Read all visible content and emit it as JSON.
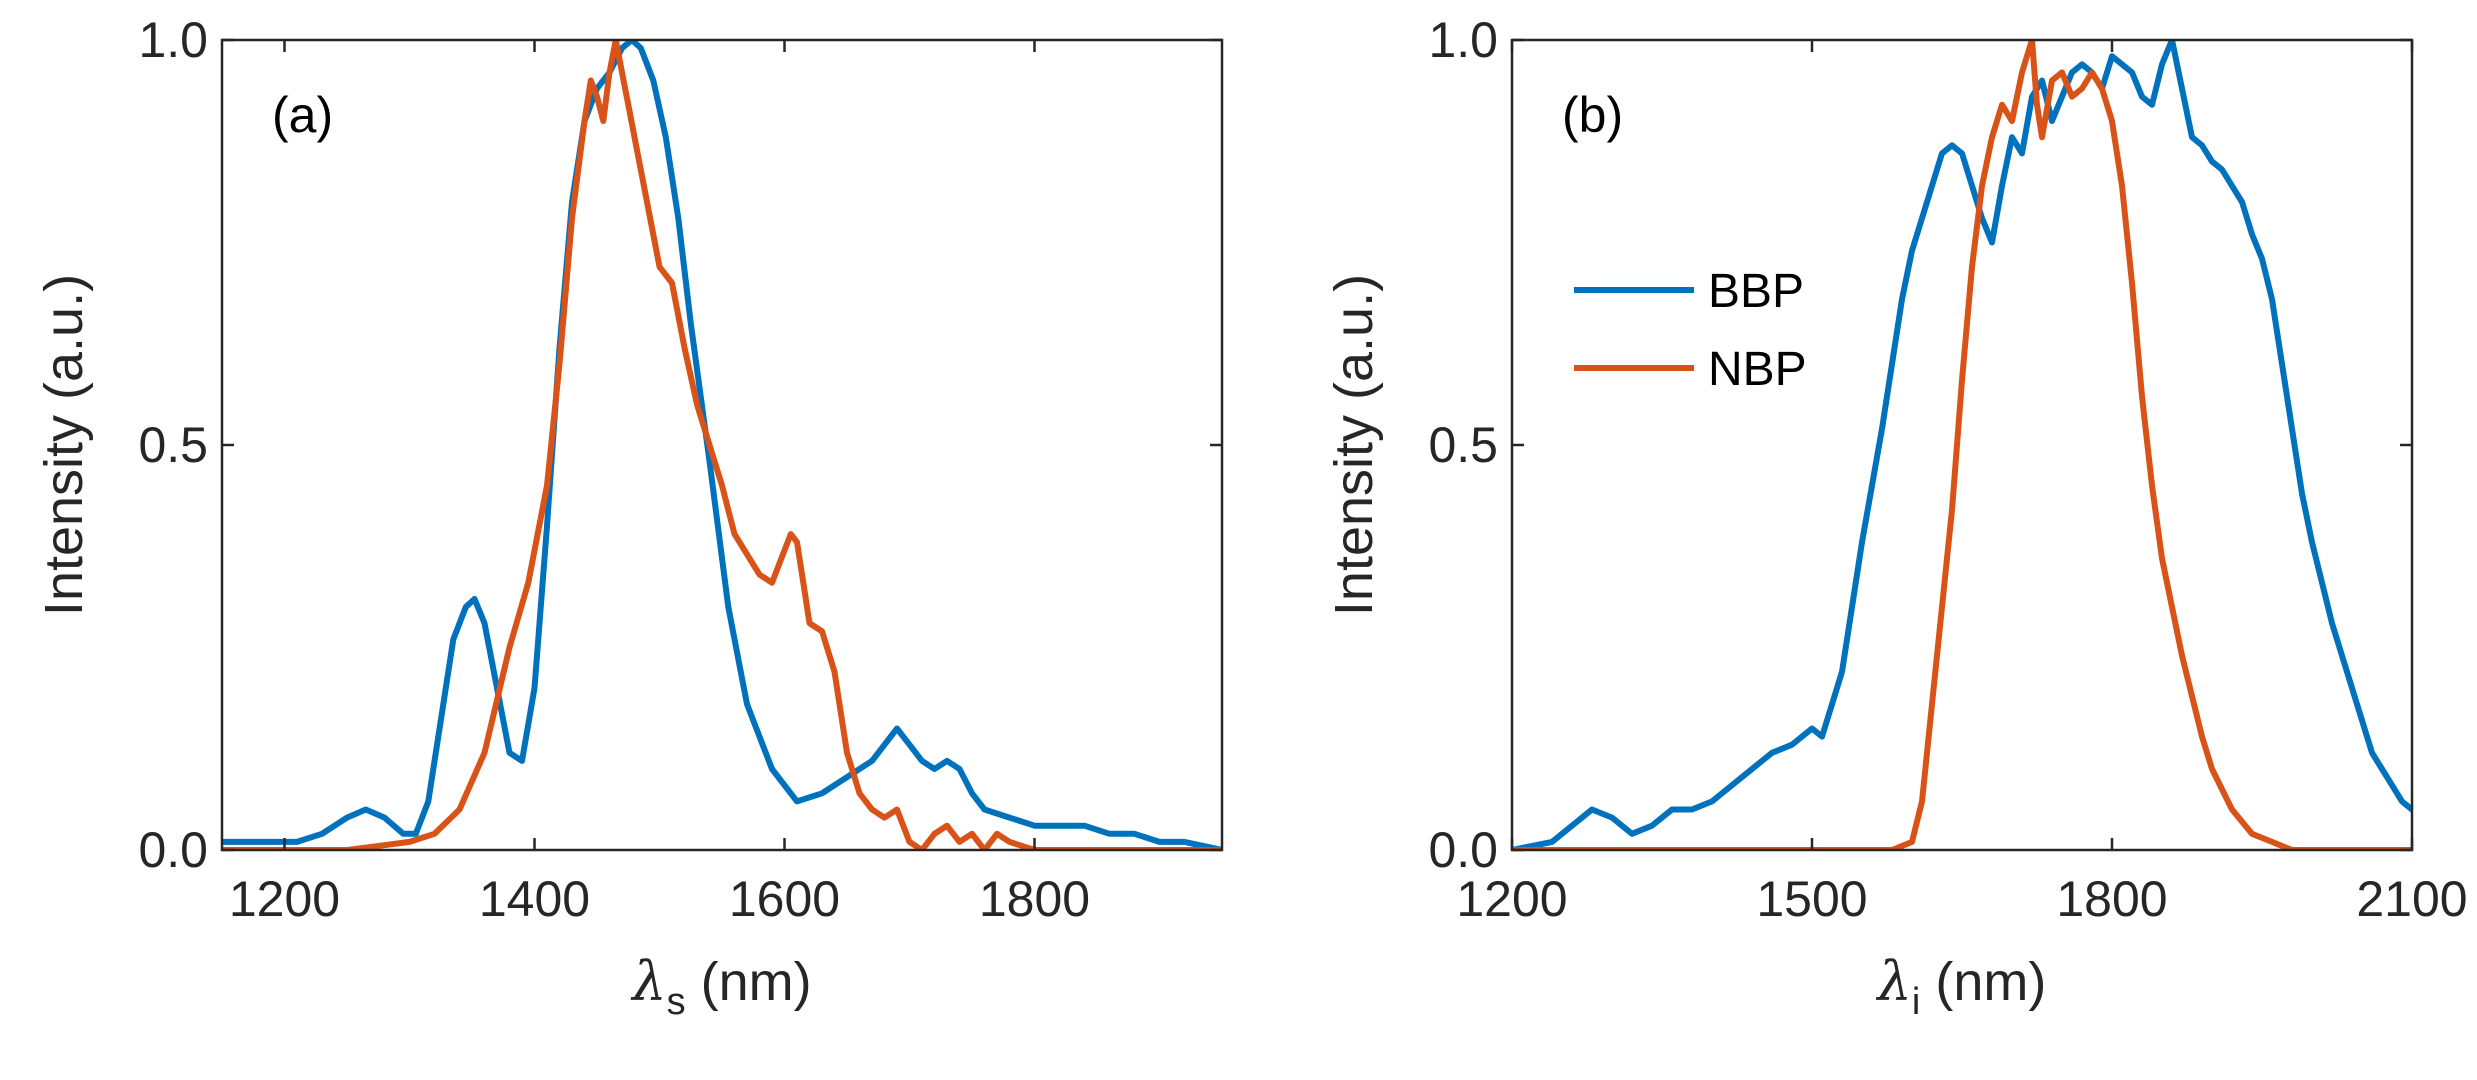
{
  "chart_data": [
    {
      "type": "line",
      "panel_label": "(a)",
      "xlabel_symbol": "λ",
      "xlabel_sub": "s",
      "xlabel_unit": " (nm)",
      "ylabel": "Intensity (a.u.)",
      "xlim": [
        1150,
        1950
      ],
      "ylim": [
        0,
        1
      ],
      "xticks": [
        1200,
        1400,
        1600,
        1800
      ],
      "yticks": [
        0,
        0.5,
        1
      ],
      "ytick_labels": [
        "0.0",
        "0.5",
        "1.0"
      ],
      "series": [
        {
          "name": "BBP",
          "color": "#0072BD",
          "x": [
            1150,
            1190,
            1210,
            1230,
            1250,
            1265,
            1280,
            1295,
            1305,
            1315,
            1325,
            1335,
            1345,
            1352,
            1360,
            1370,
            1380,
            1390,
            1400,
            1410,
            1420,
            1430,
            1440,
            1450,
            1460,
            1470,
            1478,
            1485,
            1495,
            1505,
            1515,
            1525,
            1540,
            1555,
            1570,
            1590,
            1610,
            1630,
            1650,
            1670,
            1680,
            1690,
            1700,
            1710,
            1720,
            1730,
            1740,
            1750,
            1760,
            1780,
            1800,
            1820,
            1840,
            1860,
            1880,
            1900,
            1920,
            1950
          ],
          "y": [
            0.01,
            0.01,
            0.01,
            0.02,
            0.04,
            0.05,
            0.04,
            0.02,
            0.02,
            0.06,
            0.16,
            0.26,
            0.3,
            0.31,
            0.28,
            0.2,
            0.12,
            0.11,
            0.2,
            0.4,
            0.62,
            0.8,
            0.9,
            0.94,
            0.96,
            0.99,
            1.0,
            0.99,
            0.95,
            0.88,
            0.78,
            0.65,
            0.48,
            0.3,
            0.18,
            0.1,
            0.06,
            0.07,
            0.09,
            0.11,
            0.13,
            0.15,
            0.13,
            0.11,
            0.1,
            0.11,
            0.1,
            0.07,
            0.05,
            0.04,
            0.03,
            0.03,
            0.03,
            0.02,
            0.02,
            0.01,
            0.01,
            0.0
          ]
        },
        {
          "name": "NBP",
          "color": "#D95319",
          "x": [
            1150,
            1250,
            1300,
            1320,
            1340,
            1360,
            1380,
            1395,
            1410,
            1420,
            1430,
            1440,
            1445,
            1450,
            1455,
            1460,
            1465,
            1470,
            1475,
            1480,
            1490,
            1500,
            1510,
            1520,
            1530,
            1540,
            1550,
            1560,
            1580,
            1590,
            1600,
            1605,
            1610,
            1615,
            1620,
            1630,
            1640,
            1650,
            1660,
            1670,
            1680,
            1690,
            1700,
            1710,
            1720,
            1730,
            1740,
            1750,
            1760,
            1770,
            1780,
            1800,
            1850,
            1950
          ],
          "y": [
            0.0,
            0.0,
            0.01,
            0.02,
            0.05,
            0.12,
            0.25,
            0.33,
            0.45,
            0.6,
            0.78,
            0.9,
            0.95,
            0.93,
            0.9,
            0.96,
            1.0,
            0.96,
            0.92,
            0.88,
            0.8,
            0.72,
            0.7,
            0.62,
            0.55,
            0.5,
            0.45,
            0.39,
            0.34,
            0.33,
            0.37,
            0.39,
            0.38,
            0.33,
            0.28,
            0.27,
            0.22,
            0.12,
            0.07,
            0.05,
            0.04,
            0.05,
            0.01,
            0.0,
            0.02,
            0.03,
            0.01,
            0.02,
            0.0,
            0.02,
            0.01,
            0.0,
            0.0,
            0.0
          ]
        }
      ]
    },
    {
      "type": "line",
      "panel_label": "(b)",
      "xlabel_symbol": "λ",
      "xlabel_sub": "i",
      "xlabel_unit": " (nm)",
      "ylabel": "Intensity (a.u.)",
      "xlim": [
        1200,
        2100
      ],
      "ylim": [
        0,
        1
      ],
      "xticks": [
        1200,
        1500,
        1800,
        2100
      ],
      "yticks": [
        0,
        0.5,
        1
      ],
      "ytick_labels": [
        "0.0",
        "0.5",
        "1.0"
      ],
      "legend": {
        "position": "upper-left",
        "entries": [
          "BBP",
          "NBP"
        ]
      },
      "series": [
        {
          "name": "BBP",
          "color": "#0072BD",
          "x": [
            1200,
            1240,
            1260,
            1280,
            1300,
            1320,
            1340,
            1360,
            1380,
            1400,
            1420,
            1440,
            1460,
            1480,
            1500,
            1510,
            1520,
            1530,
            1540,
            1550,
            1560,
            1570,
            1580,
            1590,
            1600,
            1610,
            1620,
            1630,
            1640,
            1650,
            1660,
            1670,
            1680,
            1690,
            1700,
            1710,
            1720,
            1730,
            1740,
            1750,
            1760,
            1770,
            1780,
            1790,
            1800,
            1810,
            1820,
            1830,
            1840,
            1850,
            1860,
            1870,
            1880,
            1890,
            1900,
            1910,
            1920,
            1930,
            1940,
            1950,
            1960,
            1970,
            1980,
            1990,
            2000,
            2010,
            2020,
            2030,
            2040,
            2050,
            2060,
            2070,
            2080,
            2090,
            2100
          ],
          "y": [
            0.0,
            0.01,
            0.03,
            0.05,
            0.04,
            0.02,
            0.03,
            0.05,
            0.05,
            0.06,
            0.08,
            0.1,
            0.12,
            0.13,
            0.15,
            0.14,
            0.18,
            0.22,
            0.3,
            0.38,
            0.45,
            0.52,
            0.6,
            0.68,
            0.74,
            0.78,
            0.82,
            0.86,
            0.87,
            0.86,
            0.82,
            0.78,
            0.75,
            0.82,
            0.88,
            0.86,
            0.93,
            0.95,
            0.9,
            0.93,
            0.96,
            0.97,
            0.96,
            0.94,
            0.98,
            0.97,
            0.96,
            0.93,
            0.92,
            0.97,
            1.0,
            0.94,
            0.88,
            0.87,
            0.85,
            0.84,
            0.82,
            0.8,
            0.76,
            0.73,
            0.68,
            0.6,
            0.52,
            0.44,
            0.38,
            0.33,
            0.28,
            0.24,
            0.2,
            0.16,
            0.12,
            0.1,
            0.08,
            0.06,
            0.05
          ]
        },
        {
          "name": "NBP",
          "color": "#D95319",
          "x": [
            1200,
            1580,
            1600,
            1610,
            1620,
            1630,
            1640,
            1650,
            1660,
            1670,
            1680,
            1690,
            1700,
            1710,
            1720,
            1725,
            1730,
            1740,
            1750,
            1760,
            1770,
            1780,
            1790,
            1800,
            1810,
            1820,
            1830,
            1840,
            1850,
            1860,
            1870,
            1880,
            1890,
            1900,
            1920,
            1940,
            1960,
            1980,
            2000,
            2100
          ],
          "y": [
            0.0,
            0.0,
            0.01,
            0.06,
            0.18,
            0.3,
            0.42,
            0.58,
            0.72,
            0.82,
            0.88,
            0.92,
            0.9,
            0.96,
            1.0,
            0.92,
            0.88,
            0.95,
            0.96,
            0.93,
            0.94,
            0.96,
            0.94,
            0.9,
            0.82,
            0.7,
            0.56,
            0.45,
            0.36,
            0.3,
            0.24,
            0.19,
            0.14,
            0.1,
            0.05,
            0.02,
            0.01,
            0.0,
            0.0,
            0.0
          ]
        }
      ]
    }
  ]
}
